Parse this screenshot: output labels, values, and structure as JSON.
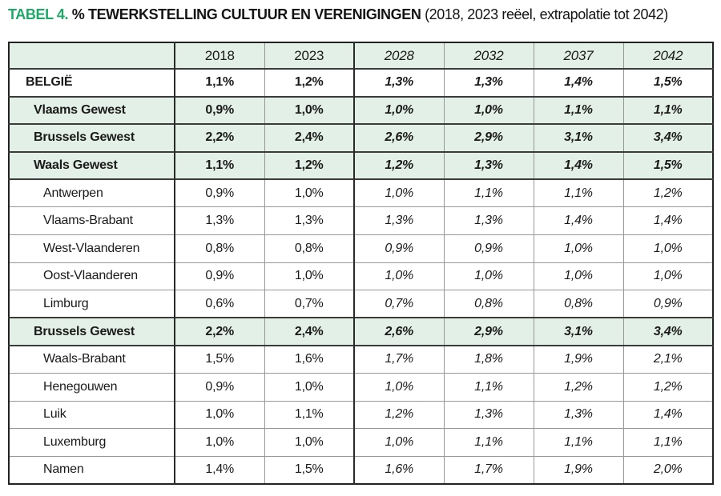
{
  "title": {
    "tag": "TABEL 4.",
    "main": "% TEWERKSTELLING CULTUUR EN VERENIGINGEN",
    "subtitle": "(2018, 2023 reëel, extrapolatie tot 2042)"
  },
  "colors": {
    "accent_green": "#1FA868",
    "row_green": "#E3F0E7",
    "thin_border": "#979797",
    "thick_border": "#222222",
    "text": "#1A1A1A"
  },
  "chart_data": {
    "type": "table",
    "title": "TABEL 4. % TEWERKSTELLING CULTUUR EN VERENIGINGEN (2018, 2023 reëel, extrapolatie tot 2042)",
    "columns": [
      "",
      "2018",
      "2023",
      "2028",
      "2032",
      "2037",
      "2042"
    ],
    "real_years": [
      "2018",
      "2023"
    ],
    "extrapolated_years": [
      "2028",
      "2032",
      "2037",
      "2042"
    ],
    "rows": [
      {
        "label": "BELGIË",
        "values": [
          "1,1%",
          "1,2%",
          "1,3%",
          "1,3%",
          "1,4%",
          "1,5%"
        ],
        "level": "country",
        "bg": "white",
        "bold": true,
        "sep": true,
        "indent": 1
      },
      {
        "label": "Vlaams Gewest",
        "values": [
          "0,9%",
          "1,0%",
          "1,0%",
          "1,0%",
          "1,1%",
          "1,1%"
        ],
        "level": "region",
        "bg": "green",
        "bold": true,
        "sep": true,
        "indent": 2
      },
      {
        "label": "Brussels Gewest",
        "values": [
          "2,2%",
          "2,4%",
          "2,6%",
          "2,9%",
          "3,1%",
          "3,4%"
        ],
        "level": "region",
        "bg": "green",
        "bold": true,
        "sep": true,
        "indent": 2
      },
      {
        "label": "Waals Gewest",
        "values": [
          "1,1%",
          "1,2%",
          "1,2%",
          "1,3%",
          "1,4%",
          "1,5%"
        ],
        "level": "region",
        "bg": "green",
        "bold": true,
        "sep": true,
        "indent": 2
      },
      {
        "label": "Antwerpen",
        "values": [
          "0,9%",
          "1,0%",
          "1,0%",
          "1,1%",
          "1,1%",
          "1,2%"
        ],
        "level": "province",
        "bg": "white",
        "bold": false,
        "sep": true,
        "indent": 3
      },
      {
        "label": "Vlaams-Brabant",
        "values": [
          "1,3%",
          "1,3%",
          "1,3%",
          "1,3%",
          "1,4%",
          "1,4%"
        ],
        "level": "province",
        "bg": "white",
        "bold": false,
        "sep": false,
        "indent": 3
      },
      {
        "label": "West-Vlaanderen",
        "values": [
          "0,8%",
          "0,8%",
          "0,9%",
          "0,9%",
          "1,0%",
          "1,0%"
        ],
        "level": "province",
        "bg": "white",
        "bold": false,
        "sep": false,
        "indent": 3
      },
      {
        "label": "Oost-Vlaanderen",
        "values": [
          "0,9%",
          "1,0%",
          "1,0%",
          "1,0%",
          "1,0%",
          "1,0%"
        ],
        "level": "province",
        "bg": "white",
        "bold": false,
        "sep": false,
        "indent": 3
      },
      {
        "label": "Limburg",
        "values": [
          "0,6%",
          "0,7%",
          "0,7%",
          "0,8%",
          "0,8%",
          "0,9%"
        ],
        "level": "province",
        "bg": "white",
        "bold": false,
        "sep": false,
        "indent": 3
      },
      {
        "label": "Brussels Gewest",
        "values": [
          "2,2%",
          "2,4%",
          "2,6%",
          "2,9%",
          "3,1%",
          "3,4%"
        ],
        "level": "region",
        "bg": "green",
        "bold": true,
        "sep": true,
        "indent": 2
      },
      {
        "label": "Waals-Brabant",
        "values": [
          "1,5%",
          "1,6%",
          "1,7%",
          "1,8%",
          "1,9%",
          "2,1%"
        ],
        "level": "province",
        "bg": "white",
        "bold": false,
        "sep": true,
        "indent": 3
      },
      {
        "label": "Henegouwen",
        "values": [
          "0,9%",
          "1,0%",
          "1,0%",
          "1,1%",
          "1,2%",
          "1,2%"
        ],
        "level": "province",
        "bg": "white",
        "bold": false,
        "sep": false,
        "indent": 3
      },
      {
        "label": "Luik",
        "values": [
          "1,0%",
          "1,1%",
          "1,2%",
          "1,3%",
          "1,3%",
          "1,4%"
        ],
        "level": "province",
        "bg": "white",
        "bold": false,
        "sep": false,
        "indent": 3
      },
      {
        "label": "Luxemburg",
        "values": [
          "1,0%",
          "1,0%",
          "1,0%",
          "1,1%",
          "1,1%",
          "1,1%"
        ],
        "level": "province",
        "bg": "white",
        "bold": false,
        "sep": false,
        "indent": 3
      },
      {
        "label": "Namen",
        "values": [
          "1,4%",
          "1,5%",
          "1,6%",
          "1,7%",
          "1,9%",
          "2,0%"
        ],
        "level": "province",
        "bg": "white",
        "bold": false,
        "sep": false,
        "indent": 3
      }
    ]
  }
}
